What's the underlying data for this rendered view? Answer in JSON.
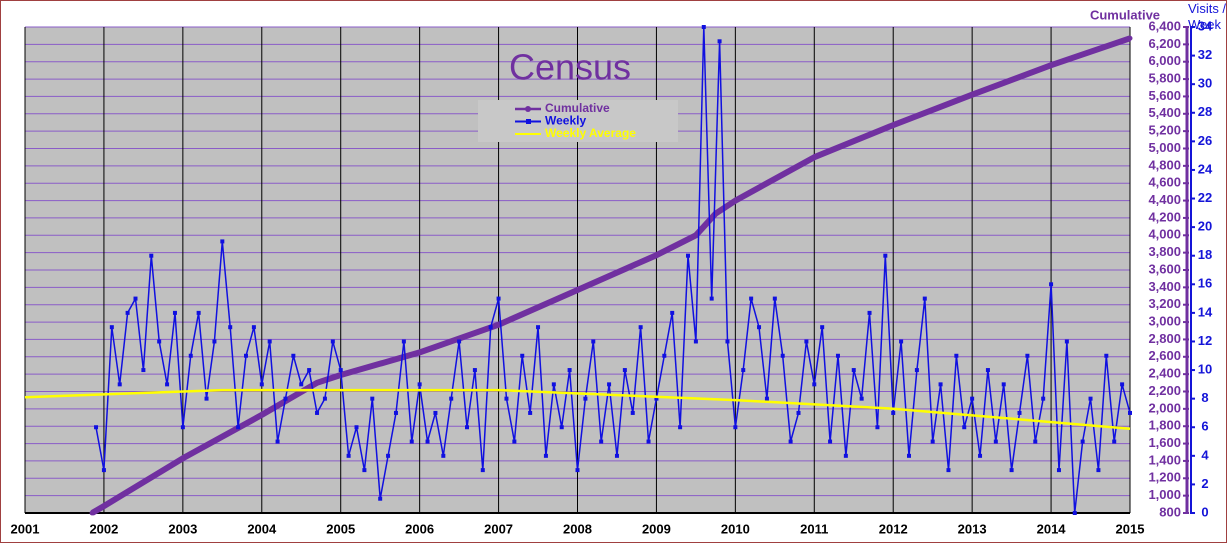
{
  "chart_data": {
    "type": "line",
    "title": "Census",
    "y_label": "Cumulative",
    "y2_label": "Visits / Week",
    "xlim": [
      2001,
      2015
    ],
    "xticks": [
      2001,
      2002,
      2003,
      2004,
      2005,
      2006,
      2007,
      2008,
      2009,
      2010,
      2011,
      2012,
      2013,
      2014,
      2015
    ],
    "ylim": [
      800,
      6400
    ],
    "yticks": [
      800,
      {
        "value": 1000,
        "label": "1,000"
      },
      {
        "value": 1200,
        "label": "1,200"
      },
      {
        "value": 1400,
        "label": "1,400"
      },
      {
        "value": 1600,
        "label": "1,600"
      },
      {
        "value": 1800,
        "label": "1,800"
      },
      {
        "value": 2000,
        "label": "2,000"
      },
      {
        "value": 2200,
        "label": "2,200"
      },
      {
        "value": 2400,
        "label": "2,400"
      },
      {
        "value": 2600,
        "label": "2,600"
      },
      {
        "value": 2800,
        "label": "2,800"
      },
      {
        "value": 3000,
        "label": "3,000"
      },
      {
        "value": 3200,
        "label": "3,200"
      },
      {
        "value": 3400,
        "label": "3,400"
      },
      {
        "value": 3600,
        "label": "3,600"
      },
      {
        "value": 3800,
        "label": "3,800"
      },
      {
        "value": 4000,
        "label": "4,000"
      },
      {
        "value": 4200,
        "label": "4,200"
      },
      {
        "value": 4400,
        "label": "4,400"
      },
      {
        "value": 4600,
        "label": "4,600"
      },
      {
        "value": 4800,
        "label": "4,800"
      },
      {
        "value": 5000,
        "label": "5,000"
      },
      {
        "value": 5200,
        "label": "5,200"
      },
      {
        "value": 5400,
        "label": "5,400"
      },
      {
        "value": 5600,
        "label": "5,600"
      },
      {
        "value": 5800,
        "label": "5,800"
      },
      {
        "value": 6000,
        "label": "6,000"
      },
      {
        "value": 6200,
        "label": "6,200"
      },
      {
        "value": 6400,
        "label": "6,400"
      }
    ],
    "y2lim": [
      0,
      34
    ],
    "y2ticks": [
      0,
      2,
      4,
      6,
      8,
      10,
      12,
      14,
      16,
      18,
      20,
      22,
      24,
      26,
      28,
      30,
      32,
      34
    ],
    "grid": true,
    "series": [
      {
        "name": "Cumulative",
        "color": "#7030a0",
        "axis": "y",
        "x": [
          2001.85,
          2002,
          2003,
          2004,
          2004.7,
          2005,
          2006,
          2007,
          2008,
          2009,
          2009.5,
          2009.75,
          2010,
          2011,
          2012,
          2013,
          2014,
          2015
        ],
        "values": [
          800,
          880,
          1430,
          1930,
          2300,
          2390,
          2650,
          2970,
          3370,
          3770,
          4000,
          4250,
          4400,
          4900,
          5270,
          5620,
          5960,
          6270
        ]
      },
      {
        "name": "Weekly",
        "color": "#1010e0",
        "axis": "y2",
        "x": [
          2001.9,
          2002.0,
          2002.1,
          2002.2,
          2002.3,
          2002.4,
          2002.5,
          2002.6,
          2002.7,
          2002.8,
          2002.9,
          2003.0,
          2003.1,
          2003.2,
          2003.3,
          2003.4,
          2003.5,
          2003.6,
          2003.7,
          2003.8,
          2003.9,
          2004.0,
          2004.1,
          2004.2,
          2004.3,
          2004.4,
          2004.5,
          2004.6,
          2004.7,
          2004.8,
          2004.9,
          2005.0,
          2005.1,
          2005.2,
          2005.3,
          2005.4,
          2005.5,
          2005.6,
          2005.7,
          2005.8,
          2005.9,
          2006.0,
          2006.1,
          2006.2,
          2006.3,
          2006.4,
          2006.5,
          2006.6,
          2006.7,
          2006.8,
          2006.9,
          2007.0,
          2007.1,
          2007.2,
          2007.3,
          2007.4,
          2007.5,
          2007.6,
          2007.7,
          2007.8,
          2007.9,
          2008.0,
          2008.1,
          2008.2,
          2008.3,
          2008.4,
          2008.5,
          2008.6,
          2008.7,
          2008.8,
          2008.9,
          2009.0,
          2009.1,
          2009.2,
          2009.3,
          2009.4,
          2009.5,
          2009.6,
          2009.7,
          2009.8,
          2009.9,
          2010.0,
          2010.1,
          2010.2,
          2010.3,
          2010.4,
          2010.5,
          2010.6,
          2010.7,
          2010.8,
          2010.9,
          2011.0,
          2011.1,
          2011.2,
          2011.3,
          2011.4,
          2011.5,
          2011.6,
          2011.7,
          2011.8,
          2011.9,
          2012.0,
          2012.1,
          2012.2,
          2012.3,
          2012.4,
          2012.5,
          2012.6,
          2012.7,
          2012.8,
          2012.9,
          2013.0,
          2013.1,
          2013.2,
          2013.3,
          2013.4,
          2013.5,
          2013.6,
          2013.7,
          2013.8,
          2013.9,
          2014.0,
          2014.1,
          2014.2,
          2014.3,
          2014.4,
          2014.5,
          2014.6,
          2014.7,
          2014.8,
          2014.9,
          2015.0
        ],
        "values": [
          6,
          3,
          13,
          9,
          14,
          15,
          10,
          18,
          12,
          9,
          14,
          6,
          11,
          14,
          8,
          12,
          19,
          13,
          6,
          11,
          13,
          9,
          12,
          5,
          8,
          11,
          9,
          10,
          7,
          8,
          12,
          10,
          4,
          6,
          3,
          8,
          1,
          4,
          7,
          12,
          5,
          9,
          5,
          7,
          4,
          8,
          12,
          6,
          10,
          3,
          13,
          15,
          8,
          5,
          11,
          7,
          13,
          4,
          9,
          6,
          10,
          3,
          8,
          12,
          5,
          9,
          4,
          10,
          7,
          13,
          5,
          8,
          11,
          14,
          6,
          18,
          12,
          34,
          15,
          33,
          12,
          6,
          10,
          15,
          13,
          8,
          15,
          11,
          5,
          7,
          12,
          9,
          13,
          5,
          11,
          4,
          10,
          8,
          14,
          6,
          18,
          7,
          12,
          4,
          10,
          15,
          5,
          9,
          3,
          11,
          6,
          8,
          4,
          10,
          5,
          9,
          3,
          7,
          11,
          5,
          8,
          16,
          3,
          12,
          0,
          5,
          8,
          3,
          11,
          5,
          9,
          7
        ]
      },
      {
        "name": "Weekly Average",
        "color": "#ffff00",
        "axis": "y2",
        "x": [
          2001,
          2003.5,
          2007,
          2010,
          2012,
          2015
        ],
        "values": [
          8.1,
          8.6,
          8.6,
          7.9,
          7.3,
          5.9
        ]
      }
    ]
  }
}
